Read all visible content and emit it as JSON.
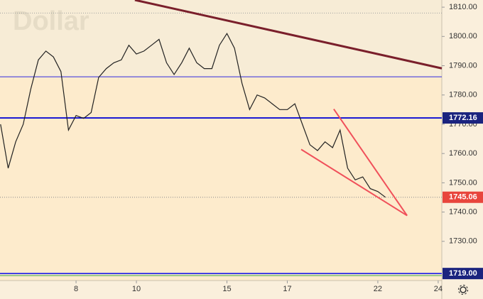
{
  "chart_data": {
    "type": "line",
    "title": "Dollar",
    "x": [
      -0.5,
      -0.25,
      0,
      0.25,
      0.5,
      0.75,
      1,
      1.25,
      1.5,
      1.75,
      2,
      2.25,
      2.5,
      2.75,
      3,
      3.25,
      3.5,
      3.75,
      4,
      4.25,
      4.5,
      4.75,
      5,
      5.25,
      5.5,
      5.75,
      6,
      6.25,
      6.5,
      6.75,
      7,
      7.25,
      7.5,
      7.75,
      8,
      8.25,
      8.5,
      8.75,
      9,
      9.25,
      9.5,
      9.75,
      10,
      10.25,
      10.5,
      10.75,
      11,
      11.25,
      11.5,
      11.75,
      12,
      12.25
    ],
    "series": [
      {
        "color": "#222222",
        "values": [
          1770,
          1755,
          1764,
          1770,
          1782,
          1792,
          1795,
          1793,
          1788,
          1768,
          1773,
          1772,
          1774,
          1786,
          1789,
          1791,
          1792,
          1797,
          1794,
          1795,
          1797,
          1799,
          1791,
          1787,
          1791,
          1796,
          1791,
          1789,
          1789,
          1797,
          1801,
          1796,
          1784,
          1775,
          1780,
          1779,
          1777,
          1775,
          1775,
          1777,
          1770,
          1763,
          1761,
          1764,
          1762,
          1768,
          1755,
          1751,
          1752,
          1748,
          1747,
          1745.06
        ]
      }
    ],
    "xlim": [
      -0.52,
      14.12
    ],
    "xticks": [
      {
        "value": 2,
        "label": "8"
      },
      {
        "value": 4,
        "label": "10"
      },
      {
        "value": 7,
        "label": "15"
      },
      {
        "value": 9,
        "label": "17"
      },
      {
        "value": 12,
        "label": "22"
      },
      {
        "value": 14,
        "label": "24"
      }
    ],
    "ylim": [
      1812.45,
      1710.3
    ],
    "yticks": [
      {
        "value": 1810,
        "label": "1810.00"
      },
      {
        "value": 1800,
        "label": "1800.00"
      },
      {
        "value": 1790,
        "label": "1790.00"
      },
      {
        "value": 1780,
        "label": "1780.00"
      },
      {
        "value": 1770,
        "label": "1770.00"
      },
      {
        "value": 1760,
        "label": "1760.00"
      },
      {
        "value": 1750,
        "label": "1750.00"
      },
      {
        "value": 1740,
        "label": "1740.00"
      },
      {
        "value": 1730,
        "label": "1730.00"
      }
    ],
    "levels": [
      {
        "value": 1786.2,
        "color": "#2b2be6"
      },
      {
        "value": 1772.16,
        "color": "#0c0cd4",
        "tag_color": "#1a237e"
      },
      {
        "value": 1745.06,
        "color": "#8a8a8a",
        "dotted": true,
        "tag_color": "#e8453c"
      },
      {
        "value": 1808,
        "color": "#a0a0a0",
        "dotted": true
      },
      {
        "value": 1719,
        "label": "1719.00",
        "color": "#2b2be6",
        "tag_color": "#1a237e"
      },
      {
        "value": 1718.3,
        "color": "#3aa64a"
      }
    ],
    "trendlines": [
      {
        "x": [
          3.95,
          14.12
        ],
        "values": [
          1812.45,
          1789.1
        ],
        "color": "#7a1f2b"
      },
      {
        "x": [
          10.54,
          12.97
        ],
        "values": [
          1775.2,
          1738.8
        ],
        "color": "#f0505a"
      },
      {
        "x": [
          9.46,
          12.97
        ],
        "values": [
          1761.4,
          1738.8
        ],
        "color": "#f0505a"
      }
    ]
  }
}
